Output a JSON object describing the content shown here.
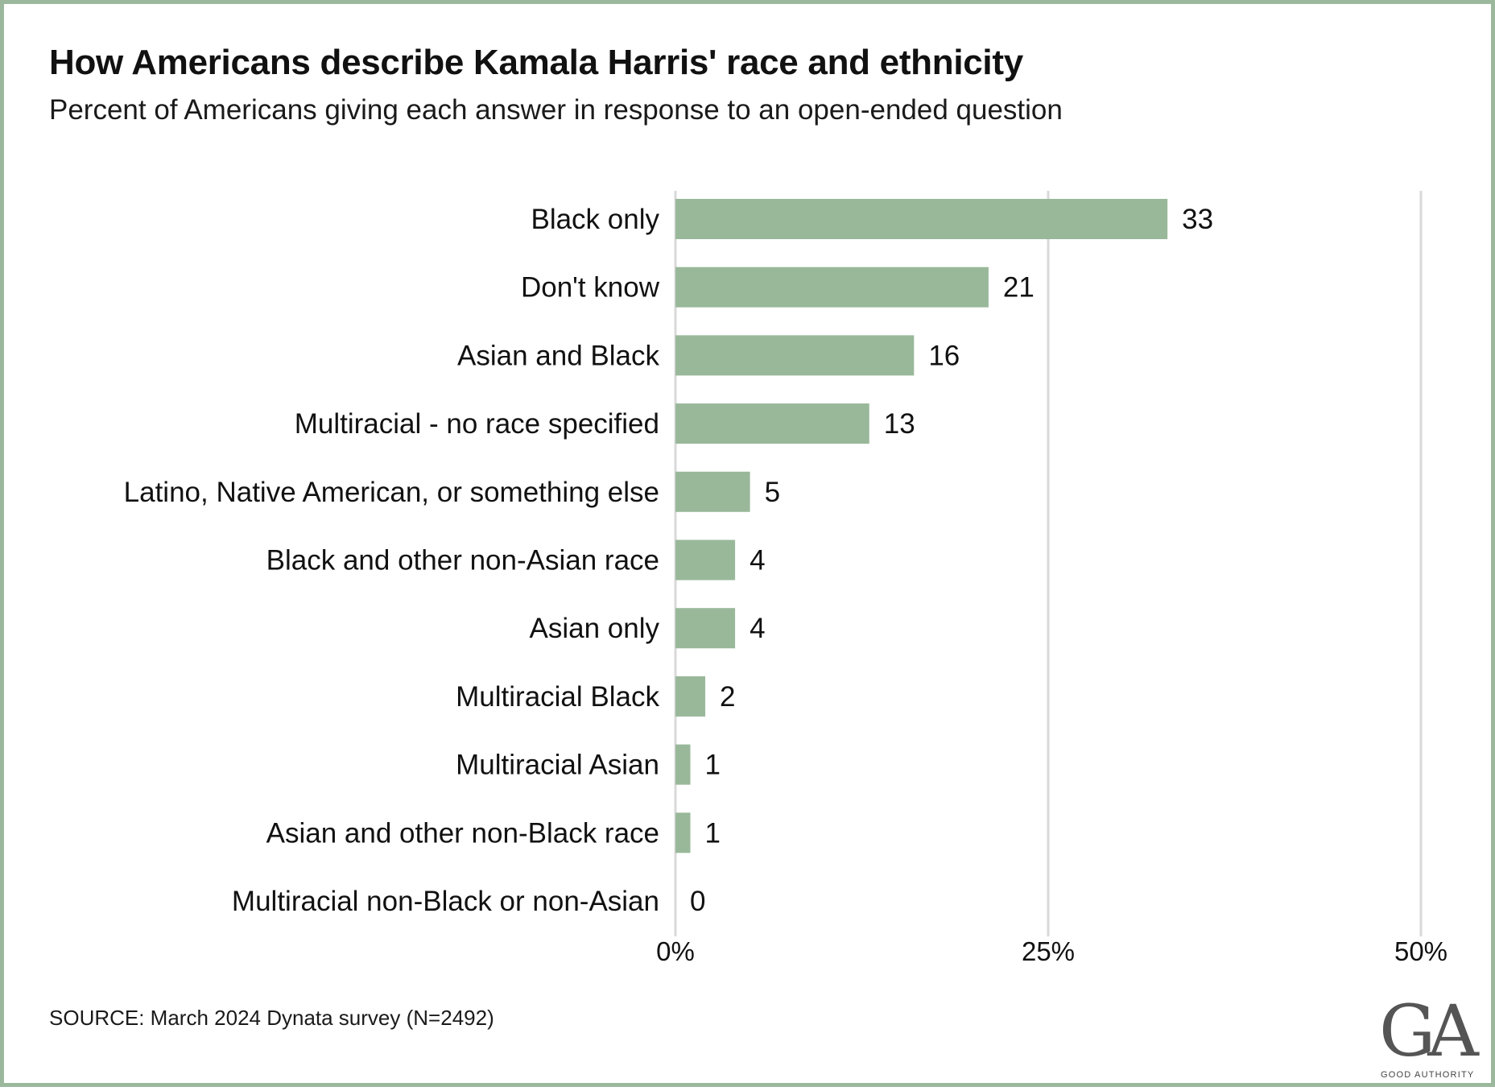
{
  "title": "How Americans describe Kamala Harris' race and ethnicity",
  "subtitle": "Percent of Americans giving each answer in response to an open-ended question",
  "source": "SOURCE: March 2024 Dynata survey (N=2492)",
  "logo": {
    "mark": "GA",
    "text": "GOOD AUTHORITY"
  },
  "colors": {
    "bar": "#99b89a",
    "grid": "#d9d9d9",
    "border": "#9bb89d"
  },
  "chart_data": {
    "type": "bar",
    "orientation": "horizontal",
    "title": "How Americans describe Kamala Harris' race and ethnicity",
    "subtitle": "Percent of Americans giving each answer in response to an open-ended question",
    "categories": [
      "Black only",
      "Don't know",
      "Asian and Black",
      "Multiracial - no race specified",
      "Latino, Native American, or something else",
      "Black and other non-Asian race",
      "Asian only",
      "Multiracial Black",
      "Multiracial Asian",
      "Asian and other non-Black race",
      "Multiracial non-Black or non-Asian"
    ],
    "values": [
      33,
      21,
      16,
      13,
      5,
      4,
      4,
      2,
      1,
      1,
      0
    ],
    "value_labels": [
      "33",
      "21",
      "16",
      "13",
      "5",
      "4",
      "4",
      "2",
      "1",
      "1",
      "0"
    ],
    "xlim": [
      0,
      50
    ],
    "xticks": [
      0,
      25,
      50
    ],
    "xtick_labels": [
      "0%",
      "25%",
      "50%"
    ],
    "xlabel": "",
    "ylabel": "",
    "grid": true,
    "legend": "none"
  }
}
